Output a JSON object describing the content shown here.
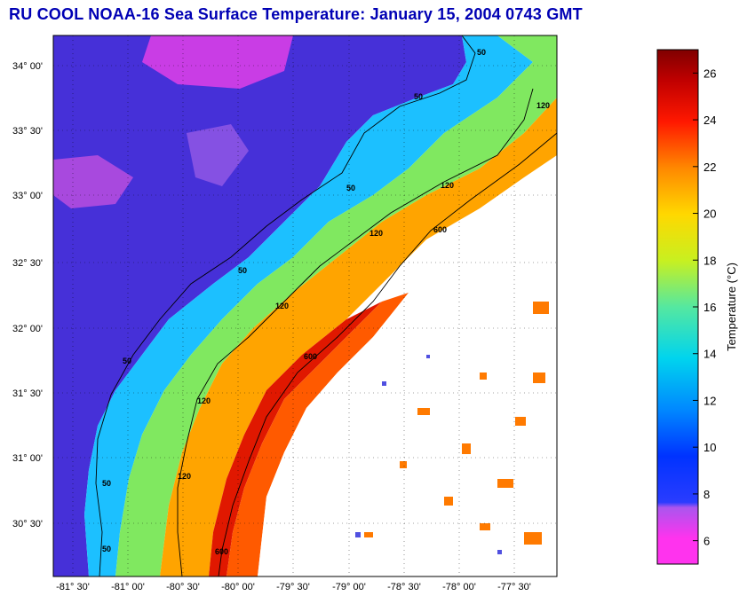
{
  "title": "RU COOL  NOAA-16  Sea Surface Temperature:  January 15, 2004 0743 GMT",
  "map": {
    "lat_ticks": [
      "34° 00'",
      "33° 30'",
      "33° 00'",
      "32° 30'",
      "32° 00'",
      "31° 30'",
      "31° 00'",
      "30° 30'"
    ],
    "lon_ticks": [
      "-81° 30'",
      "-81° 00'",
      "-80° 30'",
      "-80° 00'",
      "-79° 30'",
      "-79° 00'",
      "-78° 30'",
      "-78° 00'",
      "-77° 30'"
    ],
    "contour_labels": [
      "50",
      "50",
      "50",
      "50",
      "50",
      "50",
      "50",
      "120",
      "120",
      "120",
      "120",
      "120",
      "120",
      "600",
      "600",
      "600"
    ]
  },
  "colorbar": {
    "label": "Temperature (°C)",
    "ticks": [
      "26",
      "24",
      "22",
      "20",
      "18",
      "16",
      "14",
      "12",
      "10",
      "8",
      "6"
    ],
    "min": 5,
    "max": 27,
    "colors": [
      "#ff33ee",
      "#cc44dd",
      "#3344ff",
      "#0088ff",
      "#00d4ee",
      "#55e8a0",
      "#c8f020",
      "#ffd800",
      "#ff8800",
      "#ff1800",
      "#c00000",
      "#800000"
    ]
  }
}
